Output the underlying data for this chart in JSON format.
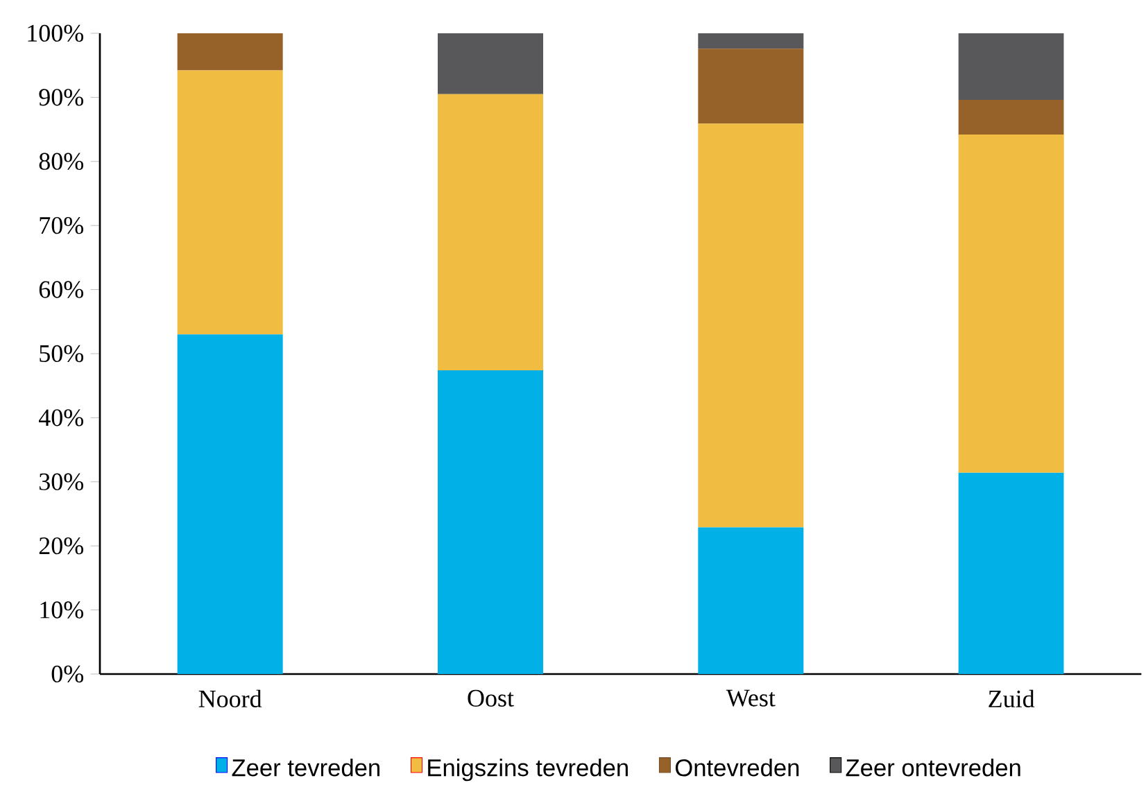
{
  "chart_data": {
    "type": "bar",
    "stacked": true,
    "categories": [
      "Noord",
      "Oost",
      "West",
      "Zuid"
    ],
    "series": [
      {
        "name": "Zeer tevreden",
        "color": "#00b0e6",
        "values": [
          53.0,
          47.4,
          22.9,
          31.4
        ]
      },
      {
        "name": "Enigszins tevreden",
        "color": "#f0bc42",
        "values": [
          41.2,
          43.1,
          63.0,
          52.8
        ]
      },
      {
        "name": "Ontevreden",
        "color": "#97622a",
        "values": [
          5.8,
          0,
          11.7,
          5.4
        ]
      },
      {
        "name": "Zeer ontevreden",
        "color": "#58585a",
        "values": [
          0,
          9.5,
          2.4,
          10.4
        ]
      }
    ],
    "ylim": [
      0,
      100
    ],
    "yticks": [
      {
        "value": 0,
        "label": "0%"
      },
      {
        "value": 10,
        "label": "10%"
      },
      {
        "value": 20,
        "label": "20%"
      },
      {
        "value": 30,
        "label": "30%"
      },
      {
        "value": 40,
        "label": "40%"
      },
      {
        "value": 50,
        "label": "50%"
      },
      {
        "value": 60,
        "label": "60%"
      },
      {
        "value": 70,
        "label": "70%"
      },
      {
        "value": 80,
        "label": "80%"
      },
      {
        "value": 90,
        "label": "90%"
      },
      {
        "value": 100,
        "label": "100%"
      }
    ],
    "legend": "bottom"
  }
}
